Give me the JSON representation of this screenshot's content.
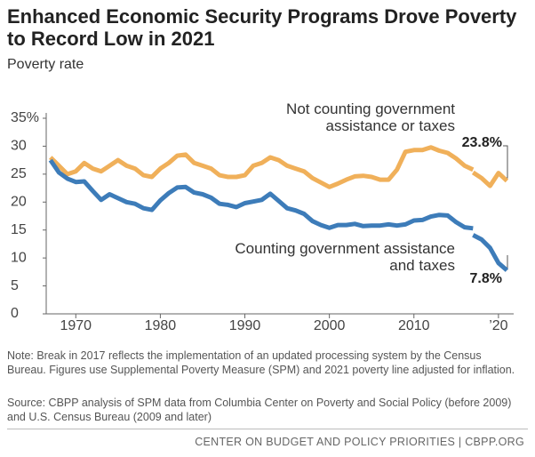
{
  "title": "Enhanced Economic Security Programs Drove Poverty to Record Low in 2021",
  "chart_data": {
    "type": "line",
    "subtitle": "Poverty rate",
    "x": [
      1967,
      1968,
      1969,
      1970,
      1971,
      1972,
      1973,
      1974,
      1975,
      1976,
      1977,
      1978,
      1979,
      1980,
      1981,
      1982,
      1983,
      1984,
      1985,
      1986,
      1987,
      1988,
      1989,
      1990,
      1991,
      1992,
      1993,
      1994,
      1995,
      1996,
      1997,
      1998,
      1999,
      2000,
      2001,
      2002,
      2003,
      2004,
      2005,
      2006,
      2007,
      2008,
      2009,
      2010,
      2011,
      2012,
      2013,
      2014,
      2015,
      2016,
      2017,
      null,
      2017,
      2018,
      2019,
      2020,
      2021
    ],
    "series": [
      {
        "name": "Not counting government assistance or taxes",
        "color": "#f0b05a",
        "values": [
          28,
          26.5,
          25,
          25.5,
          27,
          26,
          25.5,
          26.5,
          27.5,
          26.5,
          26,
          24.8,
          24.5,
          26,
          27,
          28.3,
          28.5,
          27,
          26.5,
          26,
          24.8,
          24.5,
          24.5,
          24.8,
          26.5,
          27,
          28,
          27.5,
          26.5,
          26,
          25.5,
          24.3,
          23.5,
          22.7,
          23.3,
          24,
          24.6,
          24.7,
          24.5,
          24,
          24,
          25.8,
          29,
          29.3,
          29.3,
          29.8,
          29.2,
          28.8,
          27.8,
          26.5,
          25.8,
          null,
          25.3,
          24.3,
          22.9,
          25.2,
          23.8
        ],
        "value_labels": [
          null,
          null,
          null,
          null,
          null,
          null,
          null,
          null,
          null,
          null,
          null,
          null,
          null,
          null,
          null,
          null,
          null,
          null,
          null,
          null,
          null,
          null,
          null,
          null,
          null,
          null,
          null,
          null,
          null,
          null,
          null,
          null,
          null,
          null,
          null,
          null,
          null,
          null,
          null,
          null,
          null,
          null,
          null,
          null,
          null,
          null,
          null,
          null,
          null,
          null,
          null,
          null,
          null,
          null,
          null,
          null,
          "23.8%"
        ]
      },
      {
        "name": "Counting government assistance and taxes",
        "color": "#3d7cb9",
        "values": [
          27.5,
          25.3,
          24.2,
          23.6,
          23.7,
          22,
          20.4,
          21.4,
          20.7,
          20,
          19.7,
          18.9,
          18.6,
          20.3,
          21.6,
          22.6,
          22.7,
          21.7,
          21.4,
          20.8,
          19.7,
          19.5,
          19.1,
          19.8,
          20.1,
          20.4,
          21.5,
          20.2,
          18.9,
          18.5,
          17.9,
          16.6,
          15.9,
          15.4,
          15.9,
          15.9,
          16.1,
          15.7,
          15.8,
          15.8,
          16,
          15.8,
          16,
          16.7,
          16.8,
          17.4,
          17.7,
          17.6,
          16.4,
          15.5,
          15.3,
          null,
          14.1,
          13.3,
          11.8,
          9.1,
          7.8
        ],
        "value_labels": [
          null,
          null,
          null,
          null,
          null,
          null,
          null,
          null,
          null,
          null,
          null,
          null,
          null,
          null,
          null,
          null,
          null,
          null,
          null,
          null,
          null,
          null,
          null,
          null,
          null,
          null,
          null,
          null,
          null,
          null,
          null,
          null,
          null,
          null,
          null,
          null,
          null,
          null,
          null,
          null,
          null,
          null,
          null,
          null,
          null,
          null,
          null,
          null,
          null,
          null,
          null,
          null,
          null,
          null,
          null,
          null,
          "7.8%"
        ]
      }
    ],
    "xlim": [
      1966.5,
      2021.8
    ],
    "xticks": [
      1970,
      1980,
      1990,
      2000,
      2010,
      {
        "value": 2020,
        "label": "’20"
      }
    ],
    "ylim": [
      0,
      35
    ],
    "yticks": [
      0,
      5,
      10,
      15,
      20,
      25,
      30,
      {
        "value": 35,
        "label": "35%"
      }
    ]
  },
  "notes": [
    "Note: Break in 2017 reflects the implementation of an updated processing system by the Census Bureau. Figures use Supplemental Poverty Measure (SPM) and 2021 poverty line adjusted for inflation.",
    "Source: CBPP analysis of SPM data from Columbia Center on Poverty and Social Policy (before 2009) and U.S. Census Bureau (2009 and later)"
  ],
  "footer": "CENTER ON BUDGET AND POLICY PRIORITIES | CBPP.ORG"
}
